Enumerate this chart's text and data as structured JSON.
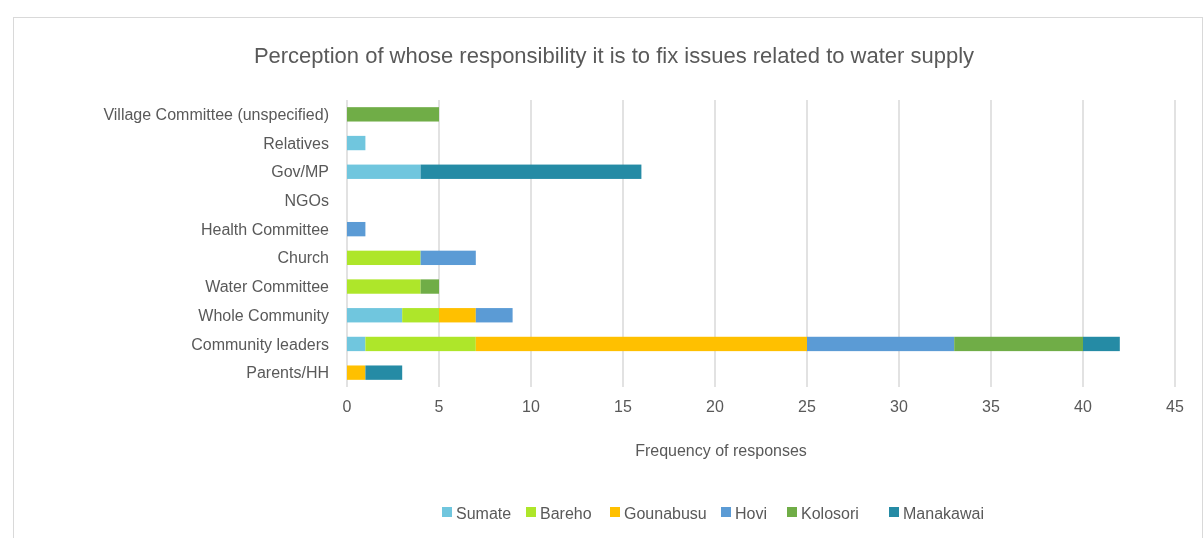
{
  "chart_data": {
    "type": "bar",
    "orientation": "horizontal",
    "stacked": true,
    "title": "Perception of whose responsibility it is to fix issues related to water supply",
    "xlabel": "Frequency of responses",
    "categories": [
      "Village Committee (unspecified)",
      "Relatives",
      "Gov/MP",
      "NGOs",
      "Health Committee",
      "Church",
      "Water Committee",
      "Whole Community",
      "Community leaders",
      "Parents/HH"
    ],
    "series": [
      {
        "name": "Sumate",
        "color": "#70c6de",
        "values": [
          0,
          1,
          4,
          0,
          0,
          0,
          0,
          3,
          1,
          0
        ]
      },
      {
        "name": "Bareho",
        "color": "#aee62a",
        "values": [
          0,
          0,
          0,
          0,
          0,
          4,
          4,
          2,
          6,
          0
        ]
      },
      {
        "name": "Gounabusu",
        "color": "#ffc000",
        "values": [
          0,
          0,
          0,
          0,
          0,
          0,
          0,
          2,
          18,
          1
        ]
      },
      {
        "name": "Hovi",
        "color": "#5b9bd5",
        "values": [
          0,
          0,
          0,
          0,
          1,
          3,
          0,
          2,
          8,
          0
        ]
      },
      {
        "name": "Kolosori",
        "color": "#70ad47",
        "values": [
          5,
          0,
          0,
          0,
          0,
          0,
          1,
          0,
          7,
          0
        ]
      },
      {
        "name": "Manakawai",
        "color": "#258ba5",
        "values": [
          0,
          0,
          12,
          0,
          0,
          0,
          0,
          0,
          2,
          2
        ]
      }
    ],
    "xlim": [
      0,
      45
    ],
    "xticks": [
      0,
      5,
      10,
      15,
      20,
      25,
      30,
      35,
      40,
      45
    ],
    "grid": "x",
    "legend": "bottom"
  }
}
